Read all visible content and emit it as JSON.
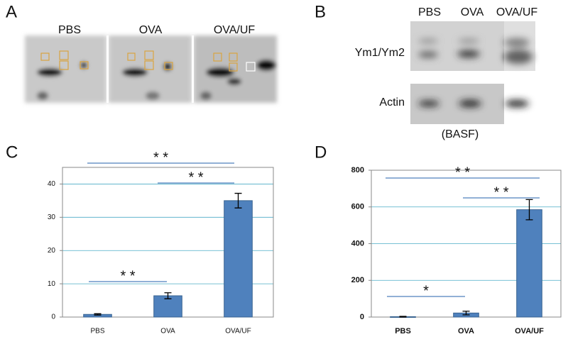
{
  "panel_labels": [
    "A",
    "B",
    "C",
    "D"
  ],
  "gel_panel": {
    "lanes": [
      "PBS",
      "OVA",
      "OVA/UF"
    ]
  },
  "blot_panel": {
    "lanes": [
      "PBS",
      "OVA",
      "OVA/UF"
    ],
    "rows": [
      "Ym1/Ym2",
      "Actin"
    ],
    "caption": "(BASF)"
  },
  "chart_data": [
    {
      "type": "bar",
      "categories": [
        "PBS",
        "OVA",
        "OVA/UF"
      ],
      "values": [
        0.8,
        6.4,
        35
      ],
      "errors": [
        0.2,
        0.9,
        2.2
      ],
      "color": "#4f81bd",
      "ylim": [
        0,
        45
      ],
      "yticks": [
        0,
        10,
        20,
        30,
        40
      ],
      "grid": true,
      "bold_ticks": false,
      "annotations": [
        "* *",
        "* *",
        "* *"
      ]
    },
    {
      "type": "bar",
      "categories": [
        "PBS",
        "OVA",
        "OVA/UF"
      ],
      "values": [
        2,
        22,
        585
      ],
      "errors": [
        2,
        10,
        55
      ],
      "color": "#4f81bd",
      "ylim": [
        0,
        800
      ],
      "yticks": [
        0,
        200,
        400,
        600,
        800
      ],
      "grid": true,
      "bold_ticks": true,
      "annotations": [
        "* *",
        "* *",
        "*"
      ]
    }
  ]
}
